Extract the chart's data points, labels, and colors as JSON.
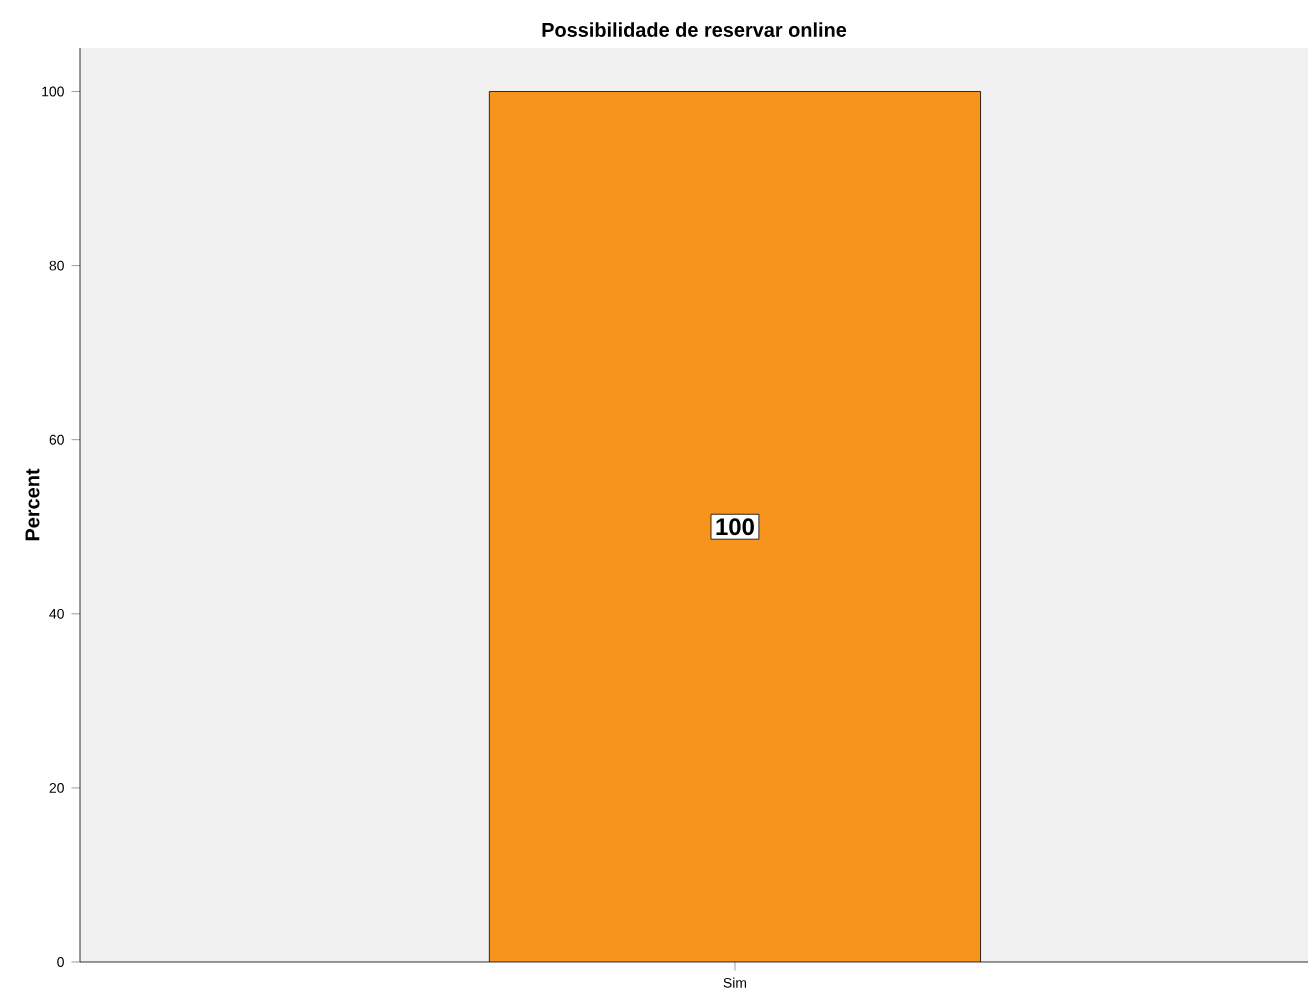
{
  "chart_data": {
    "type": "bar",
    "title": "Possibilidade de reservar online",
    "ylabel": "Percent",
    "categories": [
      "Sim"
    ],
    "values": [
      100
    ],
    "color": "#f7941d",
    "ylim": [
      0,
      105
    ],
    "yticks": [
      0,
      20,
      40,
      60,
      80,
      100
    ],
    "data_labels": true
  }
}
